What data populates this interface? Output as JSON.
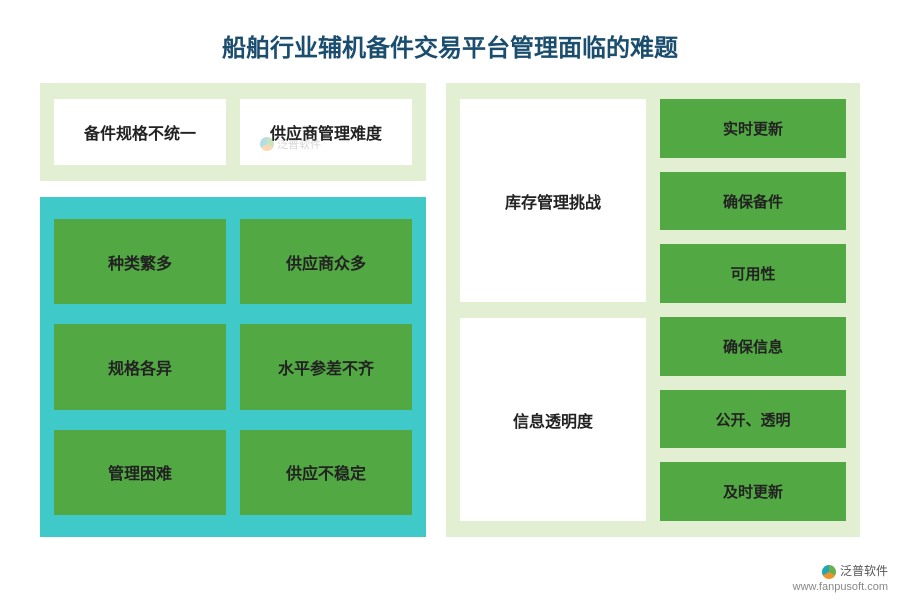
{
  "title": {
    "text": "船舶行业辅机备件交易平台管理面临的难题",
    "color": "#1a4d6e",
    "fontsize": 24
  },
  "colors": {
    "light_green_bg": "#e3efd3",
    "teal_bg": "#40c9c9",
    "green_box": "#52a843",
    "white_box": "#ffffff",
    "text_dark": "#222222",
    "text_white": "#ffffff"
  },
  "left": {
    "top_panel": {
      "boxes": [
        {
          "label": "备件规格不统一"
        },
        {
          "label": "供应商管理难度"
        }
      ]
    },
    "teal_panel": {
      "boxes": [
        {
          "label": "种类繁多"
        },
        {
          "label": "供应商众多"
        },
        {
          "label": "规格各异"
        },
        {
          "label": "水平参差不齐"
        },
        {
          "label": "管理困难"
        },
        {
          "label": "供应不稳定"
        }
      ]
    }
  },
  "right": {
    "left_col": [
      {
        "label": "库存管理挑战"
      },
      {
        "label": "信息透明度"
      }
    ],
    "right_col": [
      {
        "label": "实时更新"
      },
      {
        "label": "确保备件"
      },
      {
        "label": "可用性"
      },
      {
        "label": "确保信息"
      },
      {
        "label": "公开、透明"
      },
      {
        "label": "及时更新"
      }
    ]
  },
  "watermark": {
    "brand": "泛普软件",
    "url": "www.fanpusoft.com"
  },
  "box_fontsize": 16,
  "small_box_fontsize": 15
}
